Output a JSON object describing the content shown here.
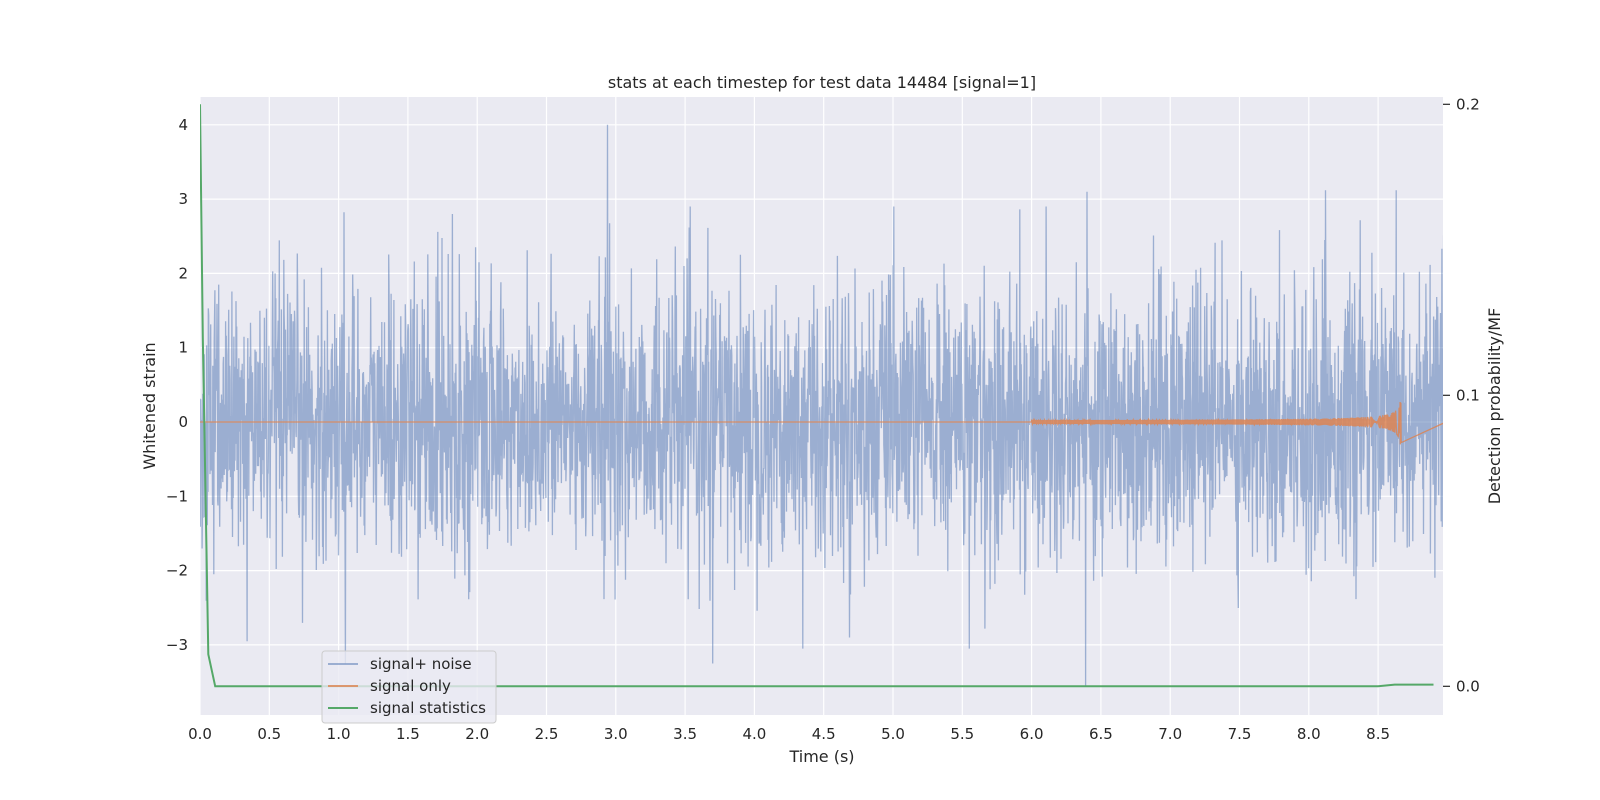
{
  "chart_data": {
    "type": "line",
    "title": "stats at each timestep for test data 14484 [signal=1]",
    "xlabel": "Time (s)",
    "ylabel": "Whitened strain",
    "y2label": "Detection probability/MF",
    "xlim": [
      0.0,
      9.0
    ],
    "ylim": [
      -3.9,
      4.35
    ],
    "y2lim": [
      -0.009,
      0.2025
    ],
    "x_ticks": [
      "0.0",
      "0.5",
      "1.0",
      "1.5",
      "2.0",
      "2.5",
      "3.0",
      "3.5",
      "4.0",
      "4.5",
      "5.0",
      "5.5",
      "6.0",
      "6.5",
      "7.0",
      "7.5",
      "8.0",
      "8.5"
    ],
    "y_ticks": [
      "4",
      "3",
      "2",
      "1",
      "0",
      "−1",
      "−2",
      "−3"
    ],
    "y2_ticks": [
      "0.2",
      "0.1",
      "0.0"
    ],
    "grid": true,
    "legend_position": "lower-left",
    "series": [
      {
        "name": "signal+ noise",
        "color": "#4c72b0",
        "opacity": 0.5,
        "description_duration_s": 8.99,
        "noise_std": 0.9,
        "peaks": [
          {
            "x": 2.94,
            "y": 4.0
          },
          {
            "x": 6.39,
            "y": -3.55
          },
          {
            "x": 1.05,
            "y": -3.25
          },
          {
            "x": 3.7,
            "y": -3.25
          },
          {
            "x": 6.4,
            "y": 3.1
          },
          {
            "x": 8.12,
            "y": 3.12
          },
          {
            "x": 8.63,
            "y": 3.12
          },
          {
            "x": 0.34,
            "y": -2.95
          },
          {
            "x": 4.35,
            "y": -3.05
          },
          {
            "x": 5.55,
            "y": -3.05
          },
          {
            "x": 1.82,
            "y": 2.8
          }
        ]
      },
      {
        "name": "signal only",
        "color": "#dd8452",
        "chirp_start": 6.0,
        "chirp_peak_time": 8.67,
        "chirp_peak_amplitude": 0.45
      },
      {
        "name": "signal statistics",
        "color": "#55a868",
        "axis": "right",
        "x": [
          0.0,
          0.02,
          0.06,
          0.11,
          8.5,
          8.62,
          8.9
        ],
        "y": [
          0.2,
          0.12,
          0.011,
          0.0,
          0.0,
          0.0006,
          0.0006
        ]
      }
    ]
  }
}
